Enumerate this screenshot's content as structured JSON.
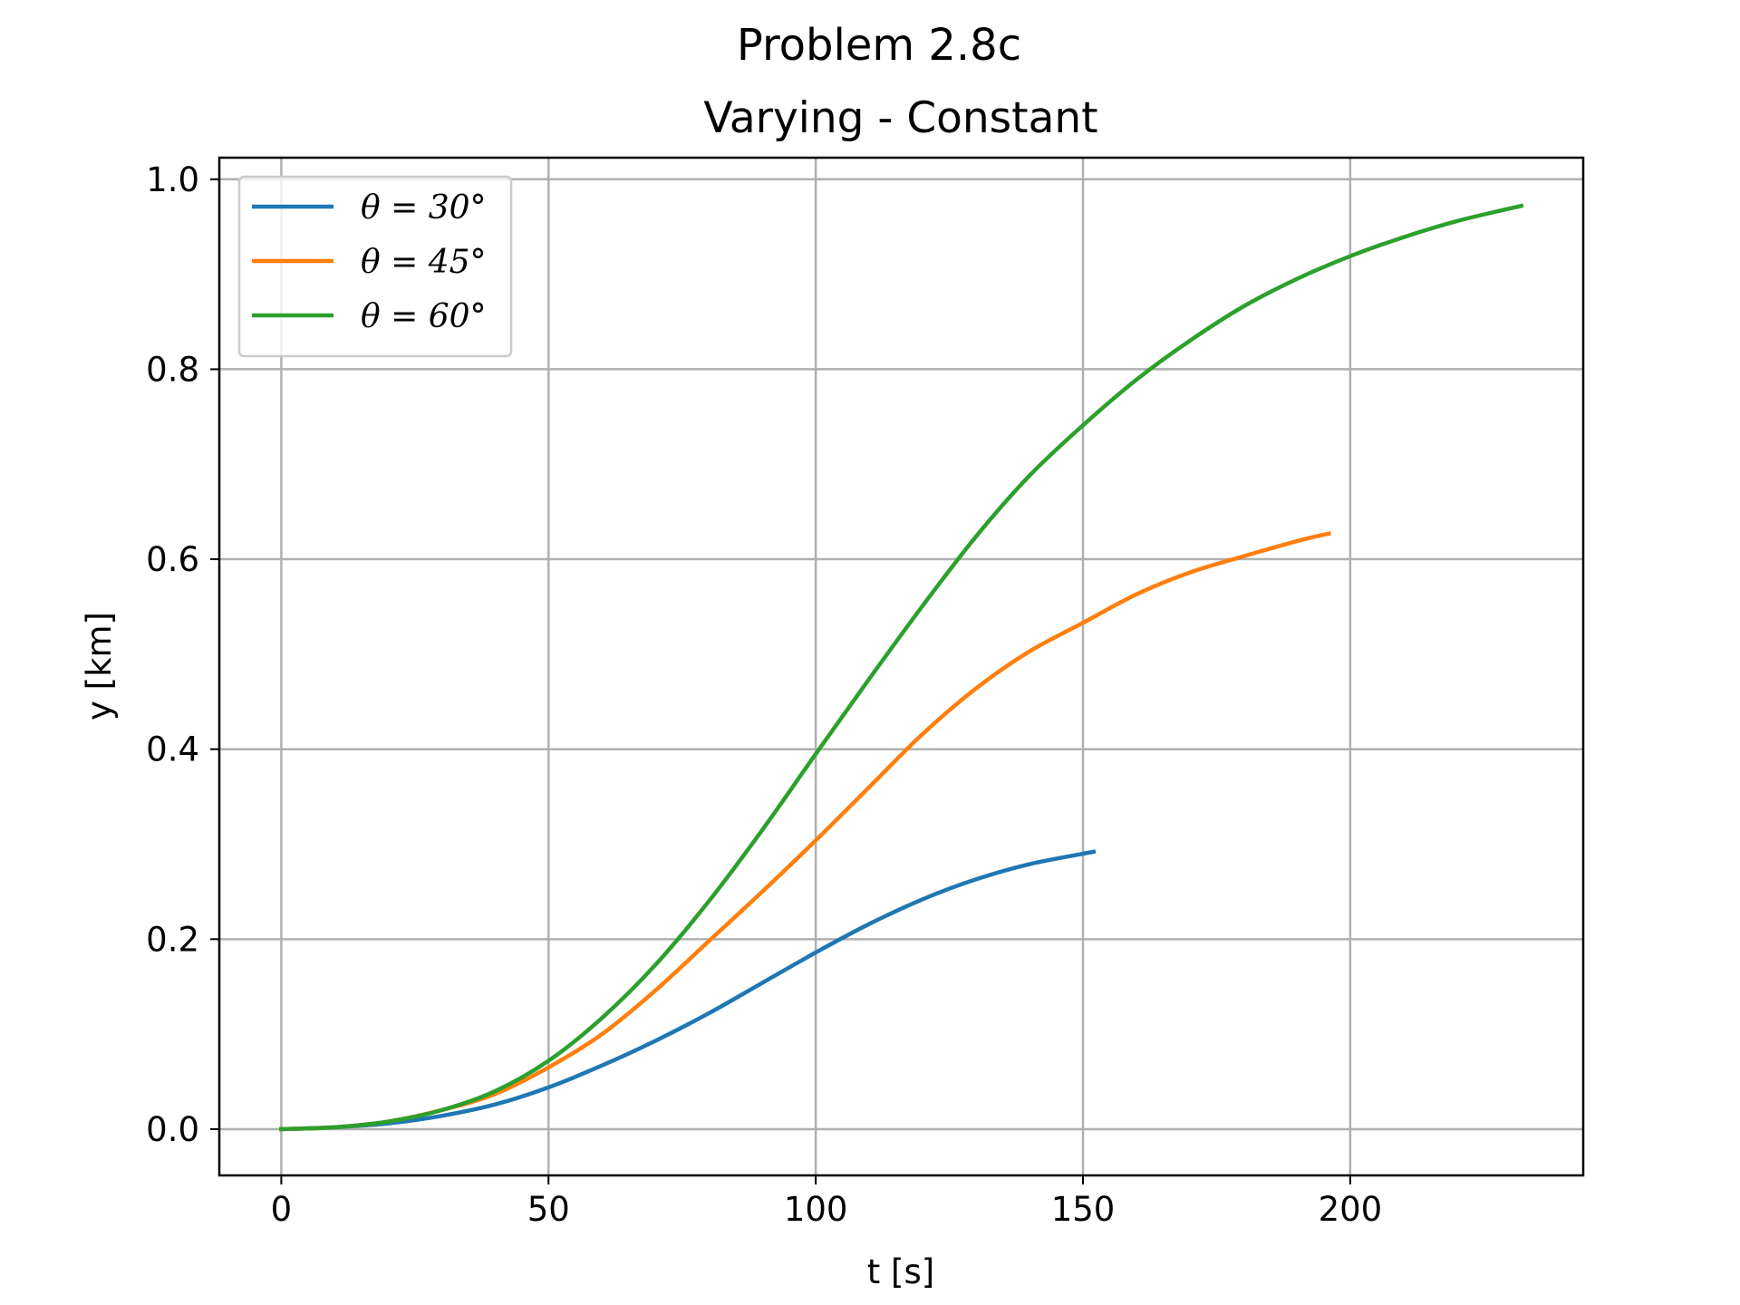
{
  "figure": {
    "suptitle": "Problem 2.8c"
  },
  "chart_data": {
    "type": "line",
    "title": "Varying - Constant",
    "xlabel": "t [s]",
    "ylabel": "y [km]",
    "xlim": [
      -11.6,
      243.6
    ],
    "ylim": [
      -0.0487,
      1.0227
    ],
    "xticks": [
      0,
      50,
      100,
      150,
      200
    ],
    "xtick_labels": [
      "0",
      "50",
      "100",
      "150",
      "200"
    ],
    "yticks": [
      0.0,
      0.2,
      0.4,
      0.6,
      0.8,
      1.0
    ],
    "ytick_labels": [
      "0.0",
      "0.2",
      "0.4",
      "0.6",
      "0.8",
      "1.0"
    ],
    "grid": true,
    "legend_position": "upper-left",
    "series": [
      {
        "name": "θ = 30°",
        "color": "#1f77b4",
        "points": [
          [
            0,
            0.0
          ],
          [
            10,
            0.002
          ],
          [
            20,
            0.006
          ],
          [
            30,
            0.014
          ],
          [
            40,
            0.026
          ],
          [
            50,
            0.044
          ],
          [
            60,
            0.067
          ],
          [
            70,
            0.093
          ],
          [
            80,
            0.122
          ],
          [
            90,
            0.154
          ],
          [
            100,
            0.186
          ],
          [
            110,
            0.216
          ],
          [
            120,
            0.242
          ],
          [
            130,
            0.263
          ],
          [
            140,
            0.279
          ],
          [
            152,
            0.292
          ]
        ]
      },
      {
        "name": "θ = 45°",
        "color": "#ff7f0e",
        "points": [
          [
            0,
            0.0
          ],
          [
            10,
            0.002
          ],
          [
            20,
            0.008
          ],
          [
            30,
            0.02
          ],
          [
            40,
            0.037
          ],
          [
            50,
            0.065
          ],
          [
            60,
            0.1
          ],
          [
            70,
            0.146
          ],
          [
            80,
            0.198
          ],
          [
            90,
            0.25
          ],
          [
            100,
            0.304
          ],
          [
            110,
            0.36
          ],
          [
            120,
            0.416
          ],
          [
            130,
            0.464
          ],
          [
            140,
            0.503
          ],
          [
            150,
            0.533
          ],
          [
            160,
            0.563
          ],
          [
            170,
            0.586
          ],
          [
            180,
            0.603
          ],
          [
            190,
            0.619
          ],
          [
            196,
            0.627
          ]
        ]
      },
      {
        "name": "θ = 60°",
        "color": "#2ca02c",
        "points": [
          [
            0,
            0.0
          ],
          [
            10,
            0.002
          ],
          [
            20,
            0.008
          ],
          [
            30,
            0.02
          ],
          [
            40,
            0.04
          ],
          [
            50,
            0.072
          ],
          [
            60,
            0.117
          ],
          [
            70,
            0.173
          ],
          [
            80,
            0.24
          ],
          [
            90,
            0.315
          ],
          [
            100,
            0.395
          ],
          [
            110,
            0.474
          ],
          [
            120,
            0.551
          ],
          [
            130,
            0.624
          ],
          [
            140,
            0.688
          ],
          [
            150,
            0.741
          ],
          [
            160,
            0.789
          ],
          [
            170,
            0.83
          ],
          [
            180,
            0.866
          ],
          [
            190,
            0.895
          ],
          [
            200,
            0.919
          ],
          [
            210,
            0.939
          ],
          [
            220,
            0.956
          ],
          [
            232,
            0.972
          ]
        ]
      }
    ]
  }
}
